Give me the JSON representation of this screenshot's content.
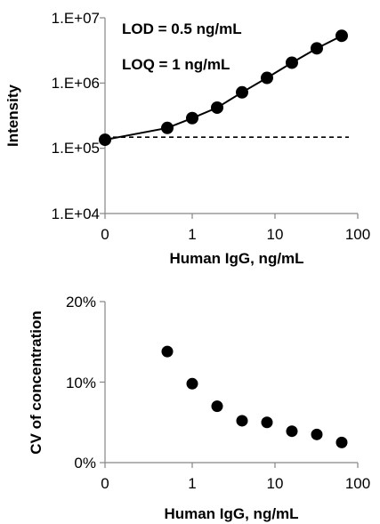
{
  "chart_data": [
    {
      "type": "line",
      "yscale": "log",
      "xscale": "log-with-zero",
      "xlabel": "Human IgG, ng/mL",
      "ylabel": "Intensity",
      "xticks": [
        "0",
        "1",
        "10",
        "100"
      ],
      "yticks": [
        "1.E+04",
        "1.E+05",
        "1.E+06",
        "1.E+07"
      ],
      "ylim": [
        10000,
        10000000
      ],
      "annotations": [
        "LOD = 0.5 ng/mL",
        "LOQ = 1 ng/mL"
      ],
      "series": [
        {
          "x": [
            0,
            0.5,
            1,
            2,
            4,
            8,
            16,
            32,
            64
          ],
          "values": [
            135000,
            205000,
            290000,
            420000,
            720000,
            1200000,
            2050000,
            3400000,
            5300000
          ]
        }
      ],
      "reference_line": {
        "y": 148000,
        "style": "dashed"
      }
    },
    {
      "type": "scatter",
      "xscale": "log-with-zero",
      "xlabel": "Human IgG, ng/mL",
      "ylabel": "CV of concentration",
      "xticks": [
        "0",
        "1",
        "10",
        "100"
      ],
      "yticks": [
        "0%",
        "10%",
        "20%"
      ],
      "ylim": [
        0,
        20
      ],
      "series": [
        {
          "x": [
            0.5,
            1,
            2,
            4,
            8,
            16,
            32,
            64
          ],
          "values": [
            13.8,
            9.8,
            7.0,
            5.2,
            5.0,
            3.9,
            3.5,
            2.5
          ]
        }
      ]
    }
  ]
}
